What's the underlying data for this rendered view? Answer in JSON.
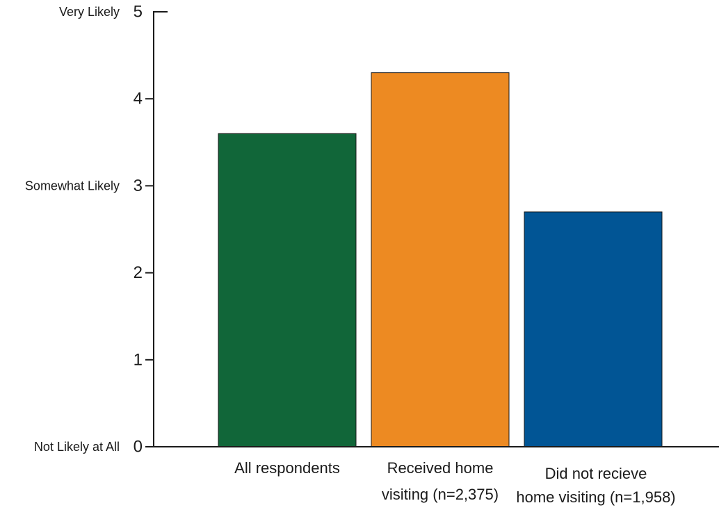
{
  "chart_data": {
    "type": "bar",
    "title": "",
    "xlabel": "",
    "ylabel": "",
    "ylim": [
      0,
      5
    ],
    "grid": false,
    "legend": "none",
    "y_ticks": [
      0,
      1,
      2,
      3,
      4,
      5
    ],
    "y_tick_categories": [
      {
        "value": 0,
        "label": "Not Likely at All"
      },
      {
        "value": 3,
        "label": "Somewhat Likely"
      },
      {
        "value": 5,
        "label": "Very Likely"
      }
    ],
    "categories": [
      [
        "All respondents"
      ],
      [
        "Received home",
        "visiting (n=2,375)"
      ],
      [
        "Did not recieve",
        "home visiting (n=1,958)"
      ]
    ],
    "values": [
      3.6,
      4.3,
      2.7
    ],
    "colors": [
      "#116639",
      "#ed8a22",
      "#015595"
    ]
  }
}
